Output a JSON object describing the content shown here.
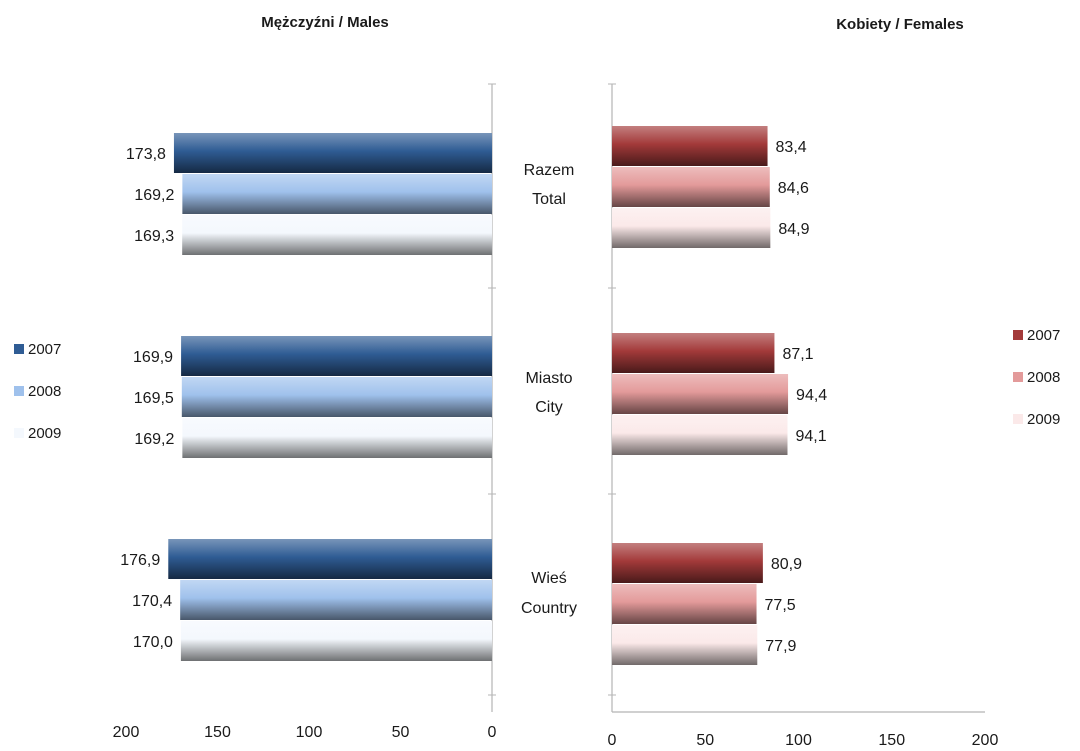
{
  "chart_data": [
    {
      "type": "bar",
      "orientation": "horizontal",
      "direction": "right-to-left",
      "title": "Mężczyźni / Males",
      "categories": [
        "Razem\nTotal",
        "Miasto\nCity",
        "Wieś\nCountry"
      ],
      "series": [
        {
          "name": "2007",
          "values": [
            173.8,
            169.9,
            176.9
          ],
          "labels": [
            "173,8",
            "169,9",
            "176,9"
          ]
        },
        {
          "name": "2008",
          "values": [
            169.2,
            169.5,
            170.4
          ],
          "labels": [
            "169,2",
            "169,5",
            "170,4"
          ]
        },
        {
          "name": "2009",
          "values": [
            169.3,
            169.2,
            170.0
          ],
          "labels": [
            "169,3",
            "169,2",
            "170,0"
          ]
        }
      ],
      "xlim": [
        0,
        200
      ],
      "xticks": [
        "0",
        "50",
        "100",
        "150",
        "200"
      ],
      "legend_position": "left",
      "grid": false
    },
    {
      "type": "bar",
      "orientation": "horizontal",
      "direction": "left-to-right",
      "title": "Kobiety / Females",
      "categories": [
        "Razem\nTotal",
        "Miasto\nCity",
        "Wieś\nCountry"
      ],
      "series": [
        {
          "name": "2007",
          "values": [
            83.4,
            87.1,
            80.9
          ],
          "labels": [
            "83,4",
            "87,1",
            "80,9"
          ]
        },
        {
          "name": "2008",
          "values": [
            84.6,
            94.4,
            77.5
          ],
          "labels": [
            "84,6",
            "94,4",
            "77,5"
          ]
        },
        {
          "name": "2009",
          "values": [
            84.9,
            94.1,
            77.9
          ],
          "labels": [
            "84,9",
            "94,1",
            "77,9"
          ]
        }
      ],
      "xlim": [
        0,
        200
      ],
      "xticks": [
        "0",
        "50",
        "100",
        "150",
        "200"
      ],
      "legend_position": "right",
      "grid": false
    }
  ],
  "colors": {
    "males": [
      "#2f5c94",
      "#9fc1ec",
      "#f4f8fd"
    ],
    "females": [
      "#a33a3a",
      "#e39a9a",
      "#fbe9e9"
    ]
  }
}
